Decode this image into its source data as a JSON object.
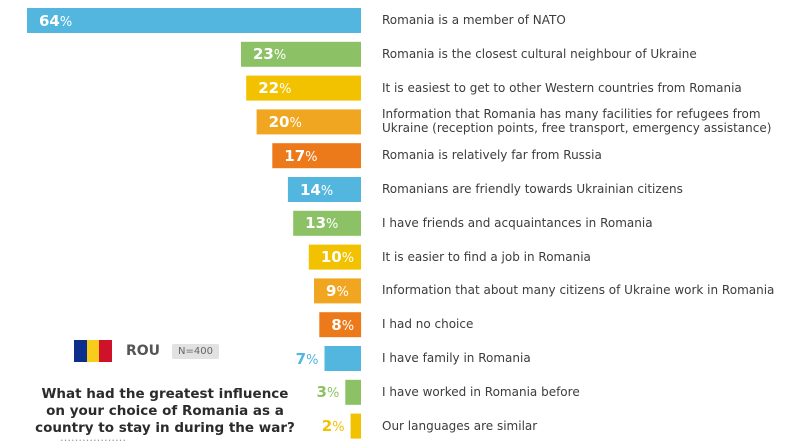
{
  "chart_data": {
    "type": "bar",
    "orientation": "horizontal",
    "value_suffix": "%",
    "categories": [
      "Romania is a member of NATO",
      "Romania is the closest cultural neighbour of Ukraine",
      "It is easiest to get to other Western countries from Romania",
      "Information that Romania has many facilities for refugees from Ukraine (reception points, free transport, emergency assistance)",
      "Romania is relatively far from Russia",
      "Romanians are friendly towards Ukrainian citizens",
      "I have friends and acquaintances in Romania",
      "It is easier to find a job in Romania",
      "Information that about many citizens of Ukraine work in Romania",
      "I had no choice",
      "I have family in Romania",
      "I have worked in Romania before",
      "Our languages are similar"
    ],
    "values": [
      64,
      23,
      22,
      20,
      17,
      14,
      13,
      10,
      9,
      8,
      7,
      3,
      2
    ],
    "bar_colors": [
      "#53b6de",
      "#8cc265",
      "#f2c200",
      "#f0a620",
      "#ec7a1b",
      "#53b6de",
      "#8cc265",
      "#f2c200",
      "#f0a620",
      "#ec7a1b",
      "#53b6de",
      "#8cc265",
      "#f2c200"
    ],
    "xlim": [
      0,
      64
    ]
  },
  "flag_colors": [
    "#0c2f8c",
    "#f7cc1a",
    "#cf1129"
  ],
  "country": "ROU",
  "sample_size": "N=400",
  "question": "What had the greatest influence on your choice of Romania as a country to stay in during the war?"
}
